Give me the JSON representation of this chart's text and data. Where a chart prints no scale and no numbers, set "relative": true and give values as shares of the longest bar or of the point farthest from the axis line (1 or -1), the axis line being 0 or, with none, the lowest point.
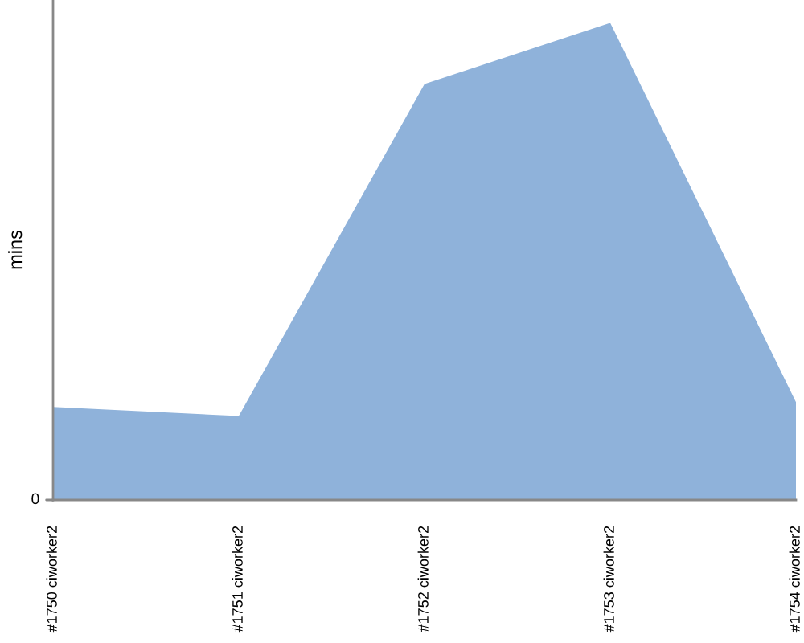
{
  "chart_data": {
    "type": "area",
    "ylabel": "mins",
    "relative": true,
    "categories": [
      "#1750 ciworker2",
      "#1751 ciworker2",
      "#1752 ciworker2",
      "#1753 ciworker2",
      "#1754 ciworker2"
    ],
    "series": [
      {
        "color": "#8fb2da",
        "values": [
          0.195,
          0.176,
          0.872,
          1,
          0.205
        ]
      }
    ],
    "annotations": [
      "0"
    ],
    "grid": false
  }
}
